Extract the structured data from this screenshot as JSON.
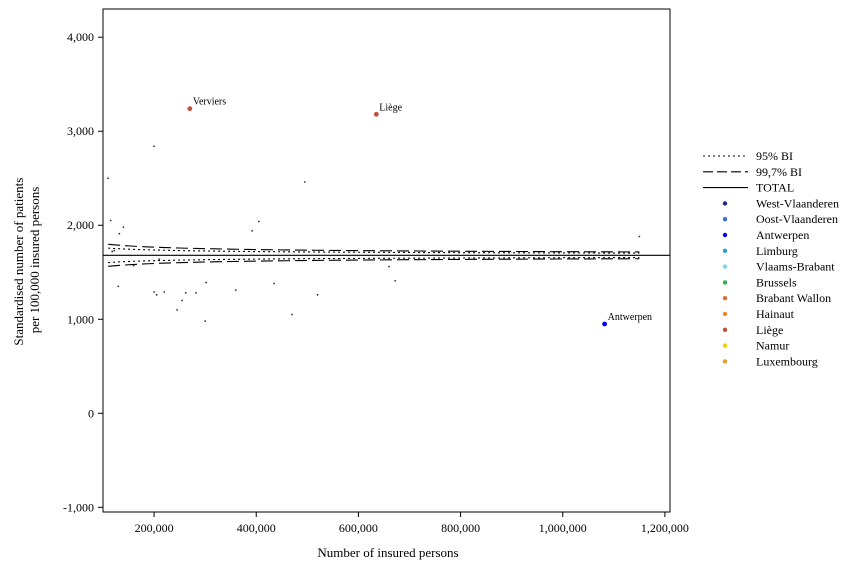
{
  "chart_data": {
    "type": "scatter",
    "title": "",
    "xlabel": "Number of insured persons",
    "ylabel_lines": [
      "Standardised number of patients",
      "per 100,000 insured persons"
    ],
    "xlim": [
      100000,
      1210000
    ],
    "ylim": [
      -1050,
      4300
    ],
    "xticks": [
      200000,
      400000,
      600000,
      800000,
      1000000,
      1200000
    ],
    "xtick_labels": [
      "200,000",
      "400,000",
      "600,000",
      "800,000",
      "1,000,000",
      "1,200,000"
    ],
    "yticks": [
      -1000,
      0,
      1000,
      2000,
      3000,
      4000
    ],
    "ytick_labels": [
      "-1,000",
      "0",
      "1,000",
      "2,000",
      "3,000",
      "4,000"
    ],
    "grid": false,
    "legend_position": "right",
    "total": 1680,
    "funnel_range": [
      110000,
      1150000
    ],
    "funnel": {
      "ci95": {
        "label": "95% BI",
        "z": 1.96,
        "style": "dotted"
      },
      "ci997": {
        "label": "99,7% BI",
        "z": 3.0,
        "style": "dashed"
      },
      "total": {
        "label": "TOTAL",
        "style": "solid"
      }
    },
    "legend": [
      {
        "label": "95% BI",
        "kind": "dotted"
      },
      {
        "label": "99,7% BI",
        "kind": "dashed"
      },
      {
        "label": "TOTAL",
        "kind": "solid"
      },
      {
        "label": "West-Vlaanderen",
        "kind": "marker",
        "color": "#1b2a8a"
      },
      {
        "label": "Oost-Vlaanderen",
        "kind": "marker",
        "color": "#3a6fd8"
      },
      {
        "label": "Antwerpen",
        "kind": "marker",
        "color": "#0000ff"
      },
      {
        "label": "Limburg",
        "kind": "marker",
        "color": "#2f9ad8"
      },
      {
        "label": "Vlaams-Brabant",
        "kind": "marker",
        "color": "#7fd3f0"
      },
      {
        "label": "Brussels",
        "kind": "marker",
        "color": "#2bb24a"
      },
      {
        "label": "Brabant Wallon",
        "kind": "marker",
        "color": "#e07030"
      },
      {
        "label": "Hainaut",
        "kind": "marker",
        "color": "#f08a20"
      },
      {
        "label": "Liège",
        "kind": "marker",
        "color": "#c0503a"
      },
      {
        "label": "Namur",
        "kind": "marker",
        "color": "#f0d000"
      },
      {
        "label": "Luxembourg",
        "kind": "marker",
        "color": "#e0a020"
      }
    ],
    "highlighted_points": [
      {
        "label": "Verviers",
        "x": 270000,
        "y": 3240,
        "color": "#c0503a"
      },
      {
        "label": "Liège",
        "x": 635000,
        "y": 3180,
        "color": "#c0503a"
      },
      {
        "label": "Antwerpen",
        "x": 1082000,
        "y": 950,
        "color": "#0000ff"
      }
    ],
    "small_points": [
      [
        110000,
        2500
      ],
      [
        115000,
        2050
      ],
      [
        118000,
        1720
      ],
      [
        122000,
        1730
      ],
      [
        130000,
        1350
      ],
      [
        132000,
        1910
      ],
      [
        140000,
        1980
      ],
      [
        160000,
        1570
      ],
      [
        200000,
        1290
      ],
      [
        200000,
        2840
      ],
      [
        205000,
        1260
      ],
      [
        210000,
        1640
      ],
      [
        220000,
        1290
      ],
      [
        245000,
        1100
      ],
      [
        255000,
        1200
      ],
      [
        262000,
        1280
      ],
      [
        282000,
        1280
      ],
      [
        300000,
        980
      ],
      [
        302000,
        1390
      ],
      [
        360000,
        1310
      ],
      [
        392000,
        1940
      ],
      [
        405000,
        2040
      ],
      [
        435000,
        1380
      ],
      [
        470000,
        1050
      ],
      [
        495000,
        2460
      ],
      [
        520000,
        1260
      ],
      [
        660000,
        1560
      ],
      [
        672000,
        1410
      ],
      [
        1150000,
        1880
      ]
    ]
  }
}
